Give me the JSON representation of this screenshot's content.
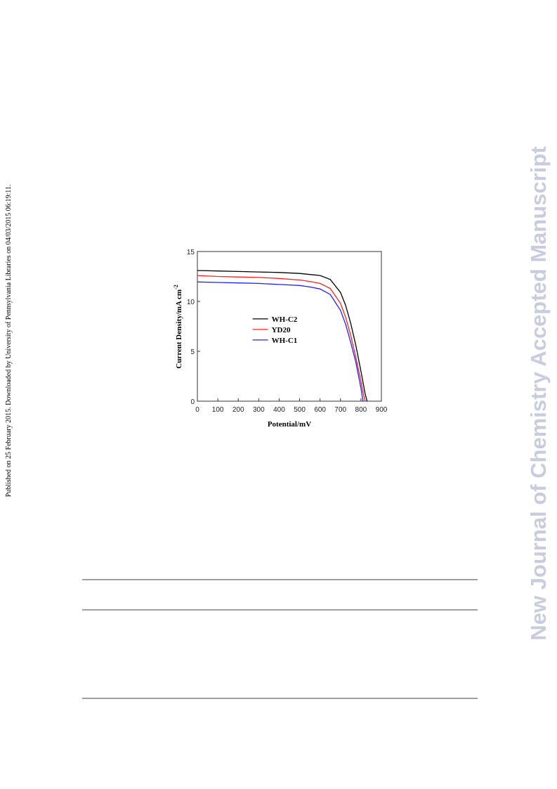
{
  "side_note": "Published on 25 February 2015. Downloaded by University of Pennsylvania Libraries on 04/03/2015 06:19:11.",
  "watermark": "New Journal of Chemistry Accepted Manuscript",
  "chart_data": {
    "type": "line",
    "xlabel": "Potential/mV",
    "ylabel": {
      "text": "Current Density/mA cm",
      "superscript": "-2"
    },
    "xlim": [
      0,
      900
    ],
    "xticks": [
      0,
      100,
      200,
      300,
      400,
      500,
      600,
      700,
      800,
      900
    ],
    "ylim": [
      0,
      15
    ],
    "yticks": [
      0,
      5,
      10,
      15
    ],
    "legend": "center",
    "x": [
      0,
      100,
      200,
      300,
      400,
      500,
      550,
      600,
      650,
      700,
      725,
      750,
      775,
      800,
      810,
      820,
      830
    ],
    "series": [
      {
        "name": "WH-C2",
        "color": "#000000",
        "values": [
          13.1,
          13.05,
          13.0,
          12.95,
          12.9,
          12.8,
          12.7,
          12.6,
          12.2,
          10.9,
          9.6,
          7.8,
          5.6,
          3.0,
          1.9,
          0.8,
          0
        ]
      },
      {
        "name": "YD20",
        "color": "#ff2020",
        "values": [
          12.6,
          12.5,
          12.45,
          12.4,
          12.3,
          12.15,
          12.0,
          11.8,
          11.3,
          9.8,
          8.4,
          6.6,
          4.4,
          2.0,
          0.9,
          0,
          null
        ]
      },
      {
        "name": "WH-C1",
        "color": "#2020ff",
        "values": [
          11.95,
          11.9,
          11.85,
          11.8,
          11.7,
          11.6,
          11.45,
          11.25,
          10.7,
          9.1,
          7.7,
          5.9,
          3.9,
          1.3,
          0,
          null,
          null
        ]
      }
    ]
  }
}
